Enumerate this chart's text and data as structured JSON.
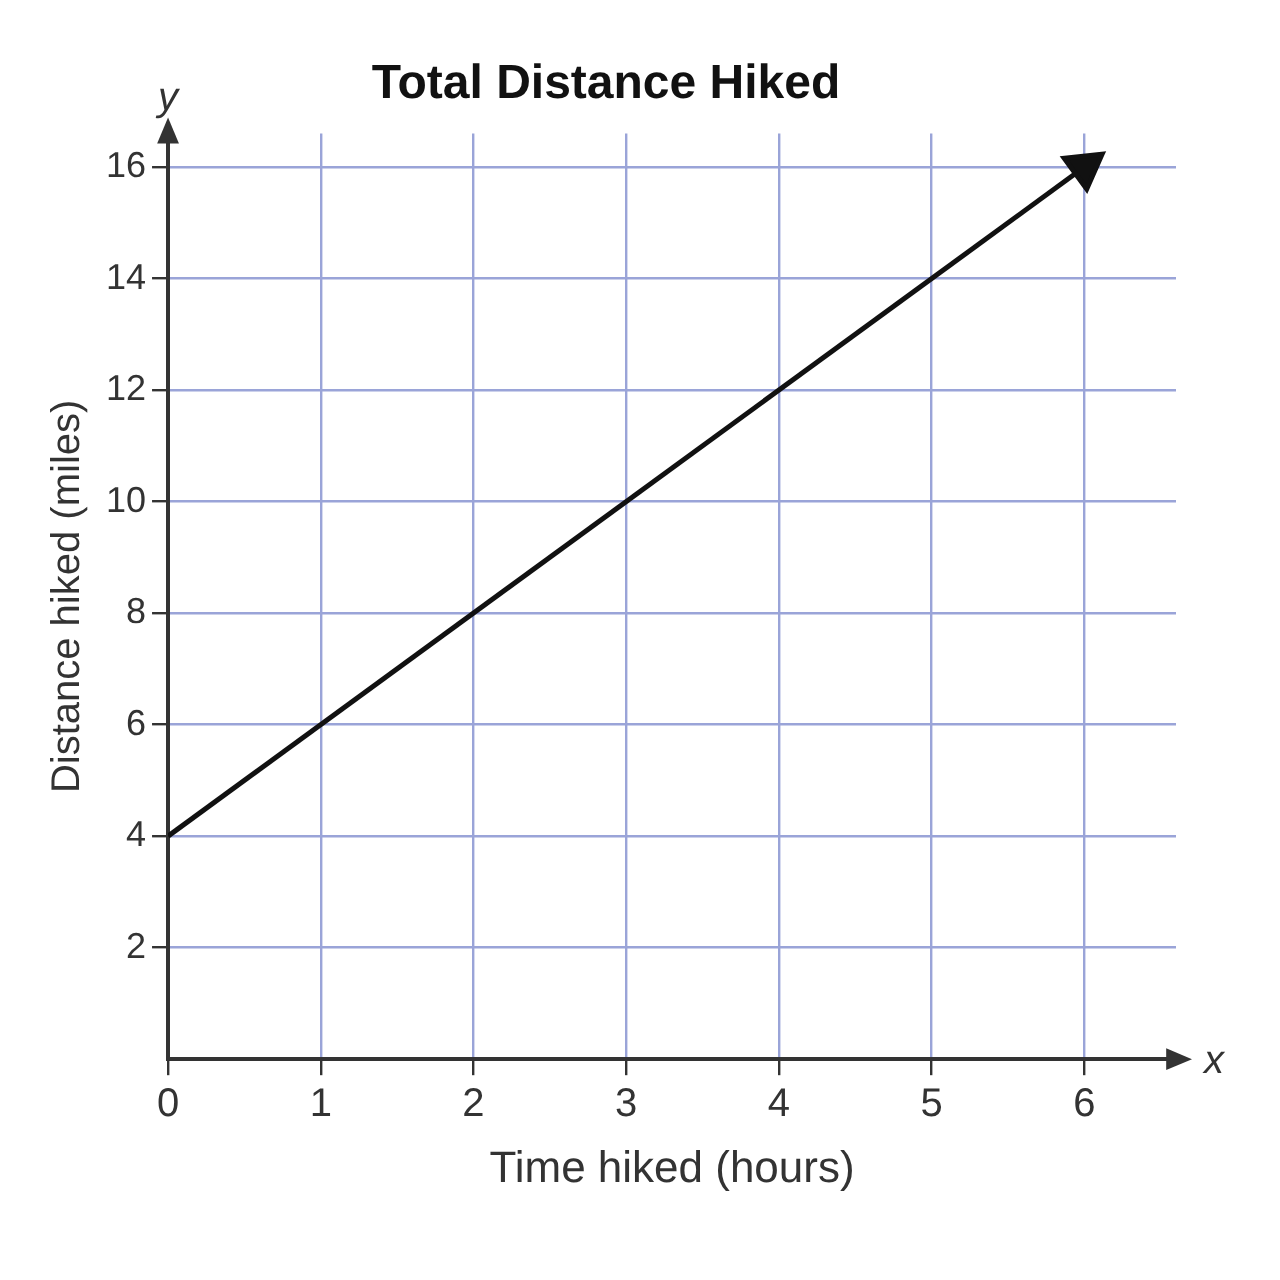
{
  "chart_data": {
    "type": "line",
    "title": "Total Distance Hiked",
    "xlabel": "Time hiked (hours)",
    "ylabel": "Distance hiked (miles)",
    "x": [
      0,
      6
    ],
    "series": [
      {
        "color": "#111111",
        "values": [
          4,
          16
        ]
      }
    ],
    "xlim": [
      0,
      6.6
    ],
    "xticks": [
      0,
      1,
      2,
      3,
      4,
      5,
      6
    ],
    "ylim": [
      0,
      16.6
    ],
    "yticks": [
      2,
      4,
      6,
      8,
      10,
      12,
      14,
      16
    ],
    "grid": true,
    "legend": false,
    "line_style": "solid",
    "annotations": [
      "y",
      "x"
    ]
  }
}
